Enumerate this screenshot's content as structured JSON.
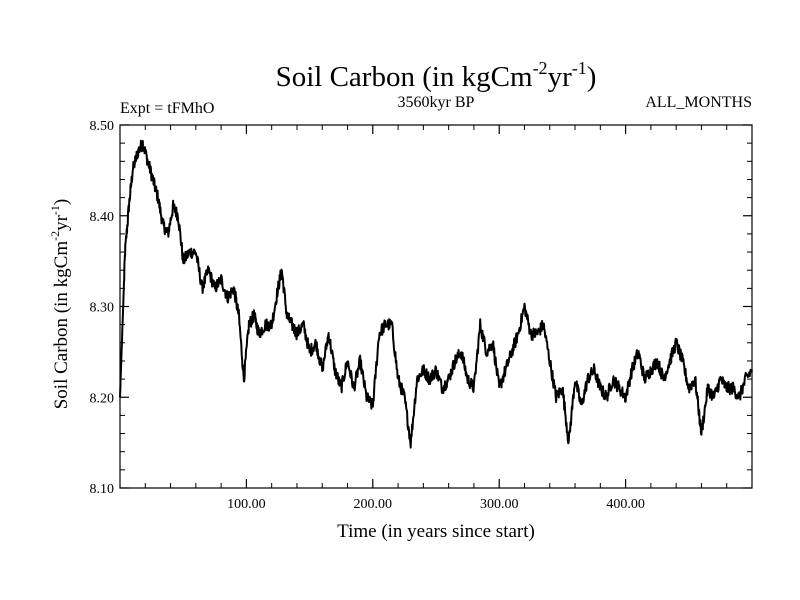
{
  "chart_data": {
    "type": "line",
    "title": "Soil Carbon (in kgCm",
    "title_sup1": "-2",
    "title_mid": "yr",
    "title_sup2": "-1",
    "title_end": ")",
    "expt_label": "Expt = tFMhO",
    "period_label": "3560kyr BP",
    "months_label": "ALL_MONTHS",
    "xlabel": "Time (in years since start)",
    "ylabel": "Soil Carbon (in kgCm",
    "ylabel_sup1": "-2",
    "ylabel_mid": "yr",
    "ylabel_sup2": "-1",
    "ylabel_end": ")",
    "xlim": [
      0,
      500
    ],
    "ylim": [
      8.1,
      8.5
    ],
    "x_ticks": [
      100,
      200,
      300,
      400
    ],
    "x_tick_labels": [
      "100.00",
      "200.00",
      "300.00",
      "400.00"
    ],
    "y_ticks": [
      8.1,
      8.2,
      8.3,
      8.4,
      8.5
    ],
    "y_tick_labels": [
      "8.10",
      "8.20",
      "8.30",
      "8.40",
      "8.50"
    ],
    "grid": false,
    "line_color": "#000000",
    "series": [
      {
        "x": [
          0,
          2,
          4,
          7,
          10,
          14,
          18,
          22,
          26,
          30,
          34,
          38,
          42,
          46,
          50,
          55,
          60,
          65,
          70,
          75,
          80,
          85,
          90,
          94,
          98,
          102,
          106,
          110,
          115,
          120,
          125,
          128,
          132,
          136,
          140,
          145,
          150,
          155,
          160,
          165,
          170,
          175,
          180,
          185,
          190,
          195,
          200,
          205,
          210,
          215,
          220,
          225,
          230,
          235,
          240,
          245,
          250,
          255,
          260,
          265,
          270,
          275,
          280,
          285,
          290,
          295,
          300,
          305,
          310,
          315,
          320,
          325,
          330,
          335,
          340,
          345,
          350,
          355,
          360,
          365,
          370,
          375,
          380,
          385,
          390,
          395,
          400,
          405,
          410,
          415,
          420,
          425,
          430,
          435,
          440,
          445,
          450,
          455,
          460,
          465,
          470,
          475,
          480,
          485,
          490,
          495,
          500
        ],
        "y": [
          8.2,
          8.28,
          8.36,
          8.41,
          8.45,
          8.47,
          8.48,
          8.46,
          8.44,
          8.42,
          8.39,
          8.38,
          8.41,
          8.4,
          8.35,
          8.36,
          8.36,
          8.32,
          8.34,
          8.32,
          8.33,
          8.31,
          8.32,
          8.29,
          8.22,
          8.28,
          8.29,
          8.27,
          8.28,
          8.28,
          8.32,
          8.34,
          8.29,
          8.28,
          8.27,
          8.28,
          8.25,
          8.26,
          8.23,
          8.27,
          8.23,
          8.21,
          8.24,
          8.21,
          8.24,
          8.2,
          8.19,
          8.27,
          8.28,
          8.28,
          8.22,
          8.2,
          8.15,
          8.22,
          8.23,
          8.22,
          8.23,
          8.21,
          8.22,
          8.24,
          8.25,
          8.22,
          8.21,
          8.28,
          8.25,
          8.26,
          8.21,
          8.23,
          8.25,
          8.27,
          8.3,
          8.27,
          8.27,
          8.28,
          8.24,
          8.2,
          8.21,
          8.15,
          8.22,
          8.19,
          8.22,
          8.23,
          8.21,
          8.2,
          8.22,
          8.21,
          8.2,
          8.23,
          8.25,
          8.22,
          8.23,
          8.24,
          8.22,
          8.24,
          8.26,
          8.24,
          8.21,
          8.22,
          8.16,
          8.21,
          8.2,
          8.22,
          8.21,
          8.21,
          8.2,
          8.22,
          8.23
        ]
      }
    ]
  }
}
